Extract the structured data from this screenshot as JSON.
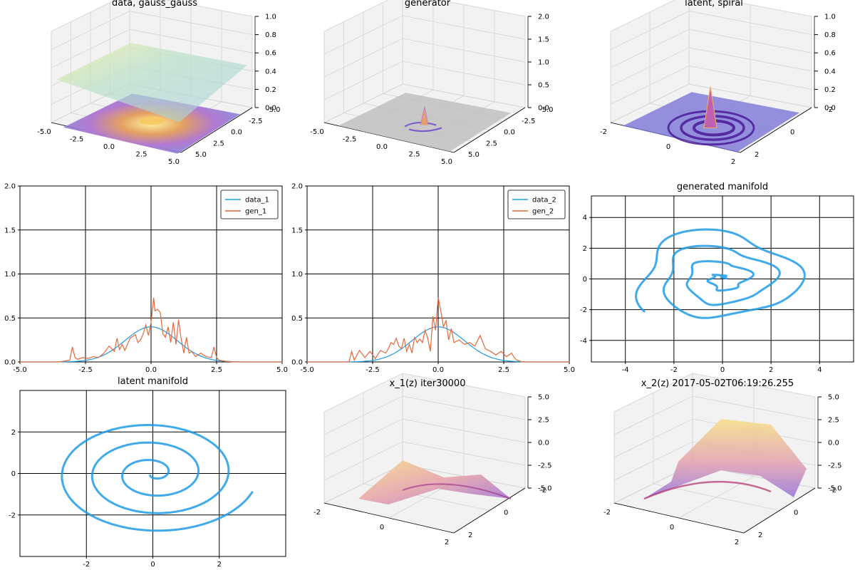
{
  "colors": {
    "data": "#1f9be8",
    "gen": "#e0693a",
    "manifold": "#1f9be8"
  },
  "chart_data": [
    {
      "id": "p1",
      "type": "surface3d",
      "title": "data, gauss_gauss",
      "xticks": [
        "-5.0",
        "-2.5",
        "0.0",
        "2.5",
        "5.0"
      ],
      "yticks": [
        "-5.0",
        "-2.5",
        "0.0",
        "2.5",
        "5.0"
      ],
      "zticks": [
        "0.0",
        "0.2",
        "0.4",
        "0.6",
        "0.8",
        "1.0"
      ],
      "zlim": [
        0,
        1
      ],
      "grid": true
    },
    {
      "id": "p2",
      "type": "surface3d",
      "title": "generator",
      "xticks": [
        "-5.0",
        "-2.5",
        "0.0",
        "2.5",
        "5.0"
      ],
      "yticks": [
        "-5.0",
        "-2.5",
        "0.0",
        "2.5",
        "5.0"
      ],
      "zticks": [
        "0.0",
        "0.5",
        "1.0",
        "1.5",
        "2.0"
      ],
      "zlim": [
        0,
        2
      ],
      "grid": true
    },
    {
      "id": "p3",
      "type": "surface3d",
      "title": "latent, spiral",
      "xticks": [
        "-2",
        "0",
        "2"
      ],
      "yticks": [
        "-2",
        "0",
        "2"
      ],
      "zticks": [
        "0.0",
        "0.2",
        "0.4",
        "0.6",
        "0.8",
        "1.0"
      ],
      "zlim": [
        0,
        1
      ],
      "grid": true
    },
    {
      "id": "p4",
      "type": "line",
      "title": "",
      "xlim": [
        -5,
        5
      ],
      "ylim": [
        0,
        2
      ],
      "xticks": [
        -5,
        -2.5,
        0,
        2.5,
        5
      ],
      "xticklabels": [
        "-5.0",
        "-2.5",
        "0.0",
        "2.5",
        "5.0"
      ],
      "yticks": [
        0,
        0.5,
        1,
        1.5,
        2
      ],
      "yticklabels": [
        "0.0",
        "0.5",
        "1.0",
        "1.5",
        "2.0"
      ],
      "grid": true,
      "legend": "top-right",
      "series": [
        {
          "name": "data_1",
          "kind": "gauss",
          "mu": 0,
          "sigma": 1
        },
        {
          "name": "gen_1",
          "kind": "spiky",
          "x": [
            -5,
            -3.5,
            -3.1,
            -3.0,
            -2.9,
            -2.8,
            -2.6,
            -2.4,
            -2.2,
            -2.0,
            -1.8,
            -1.6,
            -1.4,
            -1.3,
            -1.2,
            -1.1,
            -1.0,
            -0.8,
            -0.6,
            -0.5,
            -0.4,
            -0.3,
            -0.2,
            -0.1,
            0.0,
            0.1,
            0.15,
            0.25,
            0.35,
            0.45,
            0.55,
            0.65,
            0.75,
            0.85,
            0.95,
            1.05,
            1.15,
            1.25,
            1.35,
            1.45,
            1.55,
            1.7,
            1.9,
            2.1,
            2.3,
            2.4,
            2.5,
            2.6,
            2.8,
            3.2,
            5
          ],
          "y": [
            0,
            0,
            0.02,
            0.17,
            0.05,
            0.03,
            0.05,
            0.04,
            0.06,
            0.05,
            0.1,
            0.18,
            0.12,
            0.27,
            0.14,
            0.2,
            0.13,
            0.27,
            0.31,
            0.22,
            0.25,
            0.32,
            0.42,
            0.3,
            0.45,
            0.73,
            0.58,
            0.6,
            0.56,
            0.32,
            0.28,
            0.4,
            0.22,
            0.45,
            0.2,
            0.48,
            0.26,
            0.1,
            0.28,
            0.1,
            0.12,
            0.06,
            0.1,
            0.06,
            0.05,
            0.17,
            0.05,
            0.02,
            0.01,
            0,
            0
          ]
        }
      ]
    },
    {
      "id": "p5",
      "type": "line",
      "title": "",
      "xlim": [
        -5,
        5
      ],
      "ylim": [
        0,
        2
      ],
      "xticks": [
        -5,
        -2.5,
        0,
        2.5,
        5
      ],
      "xticklabels": [
        "-5.0",
        "-2.5",
        "0.0",
        "2.5",
        "5.0"
      ],
      "yticks": [
        0,
        0.5,
        1,
        1.5,
        2
      ],
      "yticklabels": [
        "0.0",
        "0.5",
        "1.0",
        "1.5",
        "2.0"
      ],
      "grid": true,
      "legend": "top-right",
      "series": [
        {
          "name": "data_2",
          "kind": "gauss",
          "mu": 0,
          "sigma": 1
        },
        {
          "name": "gen_2",
          "kind": "spiky",
          "x": [
            -5,
            -3.4,
            -3.3,
            -3.2,
            -3.0,
            -2.8,
            -2.6,
            -2.4,
            -2.2,
            -2.0,
            -1.9,
            -1.8,
            -1.7,
            -1.6,
            -1.5,
            -1.4,
            -1.3,
            -1.2,
            -1.1,
            -1.0,
            -0.9,
            -0.8,
            -0.7,
            -0.6,
            -0.5,
            -0.4,
            -0.3,
            -0.2,
            -0.1,
            0.0,
            0.1,
            0.2,
            0.3,
            0.4,
            0.5,
            0.6,
            0.8,
            1.0,
            1.2,
            1.4,
            1.6,
            1.8,
            2.0,
            2.2,
            2.4,
            2.6,
            2.8,
            2.9,
            3.0,
            3.2,
            5
          ],
          "y": [
            0,
            0,
            0.12,
            0.02,
            0.13,
            0.05,
            0.12,
            0.04,
            0.13,
            0.1,
            0.15,
            0.22,
            0.2,
            0.27,
            0.18,
            0.15,
            0.27,
            0.12,
            0.2,
            0.1,
            0.28,
            0.22,
            0.26,
            0.22,
            0.36,
            0.27,
            0.12,
            0.52,
            0.36,
            0.73,
            0.58,
            0.4,
            0.47,
            0.25,
            0.38,
            0.22,
            0.25,
            0.2,
            0.22,
            0.18,
            0.3,
            0.15,
            0.12,
            0.08,
            0.12,
            0.06,
            0.1,
            0.05,
            0.02,
            0,
            0
          ]
        }
      ]
    },
    {
      "id": "p6",
      "type": "scatter",
      "title": "generated manifold",
      "xlim": [
        -5.4,
        5.4
      ],
      "ylim": [
        -5.4,
        5.4
      ],
      "xticks": [
        -4,
        -2,
        0,
        2,
        4
      ],
      "xticklabels": [
        "-4",
        "-2",
        "0",
        "2",
        "4"
      ],
      "yticks": [
        -4,
        -2,
        0,
        2,
        4
      ],
      "yticklabels": [
        "-4",
        "-2",
        "0",
        "2",
        "4"
      ],
      "grid": true
    },
    {
      "id": "p7",
      "type": "scatter",
      "title": "latent manifold",
      "xlim": [
        -4,
        4
      ],
      "ylim": [
        -4,
        4
      ],
      "xticks": [
        -2,
        0,
        2
      ],
      "xticklabels": [
        "-2",
        "0",
        "2"
      ],
      "yticks": [
        -2,
        0,
        2
      ],
      "yticklabels": [
        "-2",
        "0",
        "2"
      ],
      "grid": true
    },
    {
      "id": "p8",
      "type": "surface3d",
      "title": "x_1(z) iter30000",
      "xticks": [
        "-2",
        "0",
        "2"
      ],
      "yticks": [
        "-2",
        "0",
        "2"
      ],
      "zticks": [
        "-5.0",
        "-2.5",
        "0.0",
        "2.5",
        "5.0"
      ],
      "zlim": [
        -5,
        5
      ],
      "grid": true
    },
    {
      "id": "p9",
      "type": "surface3d",
      "title": "x_2(z) 2017-05-02T06:19:26.255",
      "xticks": [
        "-2",
        "0",
        "2"
      ],
      "yticks": [
        "-2",
        "0",
        "2"
      ],
      "zticks": [
        "-5.0",
        "-2.5",
        "0.0",
        "2.5",
        "5.0"
      ],
      "zlim": [
        -5,
        5
      ],
      "grid": true
    }
  ]
}
